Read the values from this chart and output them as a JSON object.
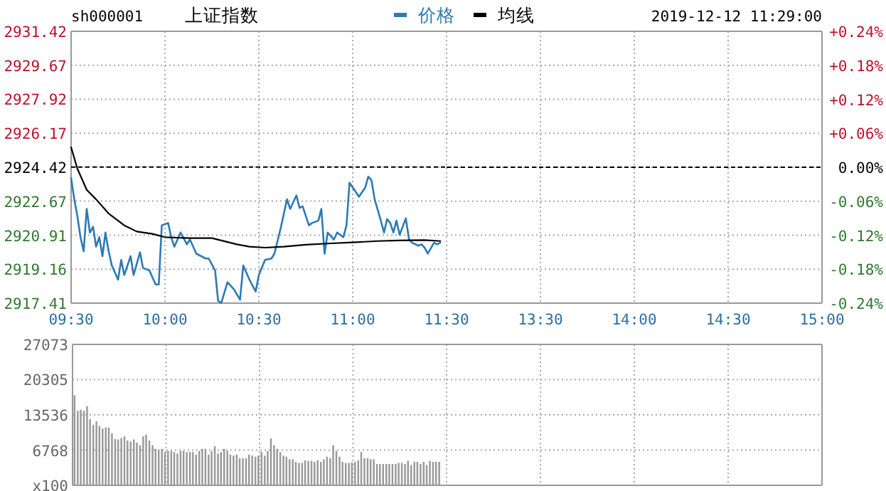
{
  "chart_data": [
    {
      "type": "line",
      "title": "上证指数",
      "annotations": [
        "sh000001"
      ],
      "legend": "top",
      "grid": true,
      "xlim": [
        9.5,
        11.5
      ],
      "xticks": [
        {
          "value": 9.5,
          "label": "09:30"
        },
        {
          "value": 10,
          "label": "10:00"
        },
        {
          "value": 10.5,
          "label": "10:30"
        },
        {
          "value": 11,
          "label": "11:00"
        },
        {
          "value": 11.5,
          "label": "11:30"
        }
      ],
      "ylim": [
        2917.41,
        2931.42
      ],
      "yticks": [
        2917.41,
        2919.16,
        2920.91,
        2922.67,
        2924.42,
        2926.17,
        2927.92,
        2929.67,
        2931.42
      ],
      "ref_lines": [
        {
          "axis": "y",
          "value": 2924.42,
          "color": "#000000",
          "line_style": "dashed"
        }
      ],
      "series": [
        {
          "name": "价格",
          "color": "#2b7bb5",
          "x": [
            9.5,
            9.517,
            9.533,
            9.55,
            9.567,
            9.583,
            9.6,
            9.617,
            9.633,
            9.65,
            9.667,
            9.683,
            9.7,
            9.717,
            9.75,
            9.767,
            9.783,
            9.817,
            9.833,
            9.867,
            9.883,
            9.917,
            9.95,
            9.967,
            9.983,
            10.017,
            10.033,
            10.05,
            10.083,
            10.117,
            10.133,
            10.167,
            10.217,
            10.233,
            10.267,
            10.283,
            10.3,
            10.333,
            10.367,
            10.4,
            10.417,
            10.45,
            10.483,
            10.5,
            10.533,
            10.567,
            10.583,
            10.617,
            10.65,
            10.667,
            10.7,
            10.717,
            10.733,
            10.767,
            10.783,
            10.817,
            10.833,
            10.85,
            10.867,
            10.9,
            10.917,
            10.95,
            10.967,
            10.983,
            11.017,
            11.033,
            11.067,
            11.083,
            11.1,
            11.117,
            11.15,
            11.167,
            11.183,
            11.2,
            11.217,
            11.233,
            11.25,
            11.283,
            11.3,
            11.317,
            11.35,
            11.367,
            11.383,
            11.4,
            11.433,
            11.45,
            11.467
          ],
          "values": [
            2923.86,
            2922.76,
            2921.91,
            2920.81,
            2920.08,
            2922.27,
            2921.05,
            2921.35,
            2920.32,
            2920.81,
            2919.83,
            2921.05,
            2920.08,
            2919.35,
            2918.62,
            2919.64,
            2918.86,
            2919.83,
            2918.86,
            2920.03,
            2919.22,
            2919.1,
            2918.37,
            2918.37,
            2921.42,
            2921.54,
            2920.81,
            2920.32,
            2921.05,
            2920.44,
            2920.69,
            2919.96,
            2919.71,
            2919.71,
            2919.1,
            2917.52,
            2917.42,
            2918.49,
            2918.13,
            2917.59,
            2919.35,
            2918.62,
            2918.01,
            2918.86,
            2919.64,
            2919.71,
            2919.96,
            2921.3,
            2922.76,
            2922.27,
            2922.96,
            2922.32,
            2922.4,
            2921.42,
            2921.54,
            2921.66,
            2922.27,
            2919.96,
            2921.05,
            2920.69,
            2921.05,
            2920.81,
            2921.42,
            2923.62,
            2923.13,
            2922.89,
            2923.37,
            2923.93,
            2923.74,
            2922.76,
            2921.66,
            2921.05,
            2921.74,
            2921.54,
            2921.05,
            2921.66,
            2920.93,
            2921.78,
            2920.69,
            2920.52,
            2920.37,
            2920.44,
            2920.27,
            2919.96,
            2920.52,
            2920.44,
            2920.52
          ]
        },
        {
          "name": "均线",
          "color": "#000000",
          "x": [
            9.5,
            9.533,
            9.583,
            9.633,
            9.7,
            9.783,
            9.85,
            9.933,
            10,
            10.133,
            10.25,
            10.383,
            10.45,
            10.533,
            10.633,
            10.75,
            10.883,
            11,
            11.133,
            11.25,
            11.383,
            11.467
          ],
          "values": [
            2925.44,
            2924.35,
            2923.25,
            2922.76,
            2922.03,
            2921.42,
            2921.1,
            2920.98,
            2920.81,
            2920.76,
            2920.76,
            2920.44,
            2920.32,
            2920.27,
            2920.32,
            2920.42,
            2920.49,
            2920.54,
            2920.61,
            2920.64,
            2920.66,
            2920.61
          ]
        }
      ]
    },
    {
      "type": "line",
      "annotations": [
        "2019-12-12 11:29:00"
      ],
      "grid": true,
      "xlim": [
        13,
        15
      ],
      "xticks": [
        {
          "value": 13.5,
          "label": "13:30"
        },
        {
          "value": 14,
          "label": "14:00"
        },
        {
          "value": 14.5,
          "label": "14:30"
        },
        {
          "value": 15,
          "label": "15:00"
        }
      ],
      "y2lim": [
        -0.24,
        0.24
      ],
      "y2ticks": [
        {
          "value": -0.24,
          "label": "-0.24%"
        },
        {
          "value": -0.18,
          "label": "-0.18%"
        },
        {
          "value": -0.12,
          "label": "-0.12%"
        },
        {
          "value": -0.06,
          "label": "-0.06%"
        },
        {
          "value": 0,
          "label": "0.00%"
        },
        {
          "value": 0.06,
          "label": "+0.06%"
        },
        {
          "value": 0.12,
          "label": "+0.12%"
        },
        {
          "value": 0.18,
          "label": "+0.18%"
        },
        {
          "value": 0.24,
          "label": "+0.24%"
        }
      ],
      "ref_lines": [
        {
          "axis": "y2",
          "value": 0,
          "color": "#000000",
          "line_style": "dashed"
        }
      ]
    },
    {
      "type": "bar",
      "grid": true,
      "tick_labels": "y",
      "color": "#999999",
      "xlim": [
        9.5,
        11.5
      ],
      "xticks": [
        9.5,
        10,
        10.5,
        11,
        11.5
      ],
      "ylim": [
        0,
        27073
      ],
      "yticks": [
        {
          "value": 0,
          "label": "x100"
        },
        6768,
        13536,
        20305,
        27073
      ],
      "x": [
        9.5,
        9.517,
        9.533,
        9.55,
        9.567,
        9.583,
        9.6,
        9.617,
        9.633,
        9.65,
        9.667,
        9.683,
        9.7,
        9.717,
        9.733,
        9.75,
        9.767,
        9.783,
        9.8,
        9.817,
        9.833,
        9.85,
        9.867,
        9.883,
        9.9,
        9.917,
        9.933,
        9.95,
        9.967,
        9.983,
        10,
        10.017,
        10.033,
        10.05,
        10.067,
        10.083,
        10.1,
        10.117,
        10.133,
        10.15,
        10.167,
        10.183,
        10.2,
        10.217,
        10.233,
        10.25,
        10.267,
        10.283,
        10.3,
        10.317,
        10.333,
        10.35,
        10.367,
        10.383,
        10.4,
        10.417,
        10.433,
        10.45,
        10.467,
        10.483,
        10.5,
        10.517,
        10.533,
        10.55,
        10.567,
        10.583,
        10.6,
        10.617,
        10.633,
        10.65,
        10.667,
        10.683,
        10.7,
        10.717,
        10.733,
        10.75,
        10.767,
        10.783,
        10.8,
        10.817,
        10.833,
        10.85,
        10.867,
        10.883,
        10.9,
        10.917,
        10.933,
        10.95,
        10.967,
        10.983,
        11,
        11.017,
        11.033,
        11.05,
        11.067,
        11.083,
        11.1,
        11.117,
        11.133,
        11.15,
        11.167,
        11.183,
        11.2,
        11.217,
        11.233,
        11.25,
        11.267,
        11.283,
        11.3,
        11.317,
        11.333,
        11.35,
        11.367,
        11.383,
        11.4,
        11.417,
        11.433,
        11.45
      ],
      "values": [
        17300,
        14300,
        14500,
        14300,
        15200,
        12700,
        11600,
        12300,
        11400,
        10900,
        11100,
        11100,
        10000,
        8900,
        8800,
        9100,
        9400,
        8600,
        8400,
        8800,
        8200,
        7700,
        9400,
        9700,
        8600,
        7700,
        7000,
        6800,
        7000,
        6400,
        6600,
        6600,
        6400,
        6100,
        6600,
        6600,
        6400,
        6400,
        6400,
        5900,
        6600,
        7000,
        7000,
        5900,
        6600,
        7500,
        6100,
        6400,
        7000,
        6600,
        5900,
        5700,
        5900,
        5200,
        5200,
        5200,
        5900,
        5700,
        5500,
        5700,
        6400,
        5700,
        6600,
        9000,
        7700,
        7000,
        6400,
        5700,
        5500,
        5000,
        5000,
        4500,
        4300,
        4300,
        4800,
        4700,
        4700,
        4500,
        4800,
        4500,
        5000,
        5500,
        5200,
        7700,
        6600,
        5500,
        4500,
        4300,
        4300,
        4400,
        4500,
        4800,
        6400,
        5200,
        5200,
        5000,
        5000,
        4100,
        4100,
        4100,
        4100,
        4100,
        4100,
        4100,
        4300,
        4300,
        4100,
        4700,
        3900,
        4500,
        4500,
        4100,
        4500,
        3900,
        4700,
        4500,
        4500,
        4500
      ]
    },
    {
      "type": "bar",
      "grid": true,
      "tick_labels": false,
      "xlim": [
        13,
        15
      ],
      "xticks": [
        13.5,
        14,
        14.5,
        15
      ],
      "ylim": [
        0,
        27073
      ],
      "yticks": [
        0,
        6768,
        13536,
        20305,
        27073
      ]
    }
  ]
}
